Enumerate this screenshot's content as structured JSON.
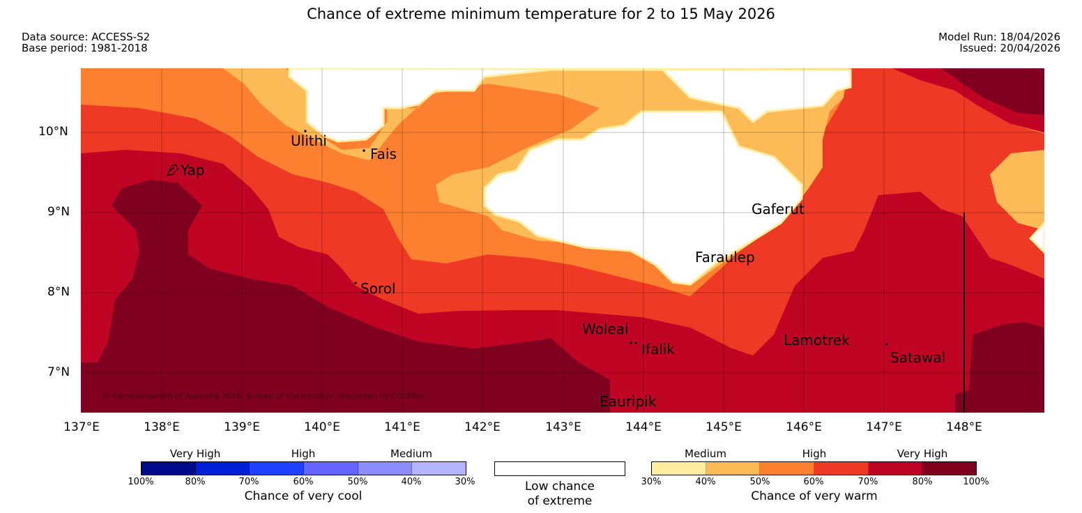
{
  "title": "Chance of extreme minimum temperature for 2 to 15 May 2026",
  "meta": {
    "data_source": "Data source: ACCESS-S2",
    "base_period": "Base period: 1981-2018",
    "model_run": "Model Run: 18/04/2026",
    "issued": "Issued: 20/04/2026"
  },
  "axes": {
    "lat_labels": [
      "10°N",
      "9°N",
      "8°N",
      "7°N"
    ],
    "lon_labels": [
      "137°E",
      "138°E",
      "139°E",
      "140°E",
      "141°E",
      "142°E",
      "143°E",
      "144°E",
      "145°E",
      "146°E",
      "147°E",
      "148°E"
    ]
  },
  "places": [
    "Ulithi",
    "Fais",
    "Yap",
    "Gaferut",
    "Faraulep",
    "Sorol",
    "Woleai",
    "Ifalik",
    "Lamotrek",
    "Satawal",
    "Eauripik"
  ],
  "copyright": "© Commonwealth of Australia 2026, Bureau of Meteorology, supported by COSPPac",
  "legend": {
    "cool": {
      "headers": [
        "Very High",
        "High",
        "Medium"
      ],
      "ticks": [
        "100%",
        "80%",
        "70%",
        "60%",
        "50%",
        "40%",
        "30%"
      ],
      "caption": "Chance of very cool",
      "colors": [
        "#000b8c",
        "#0020d8",
        "#2040ff",
        "#6464ff",
        "#8c8cff",
        "#b4b4ff"
      ]
    },
    "low": {
      "caption_line1": "Low chance",
      "caption_line2": "of extreme"
    },
    "warm": {
      "headers": [
        "Medium",
        "High",
        "Very High"
      ],
      "ticks": [
        "30%",
        "40%",
        "50%",
        "60%",
        "70%",
        "80%",
        "100%"
      ],
      "caption": "Chance of very warm",
      "colors": [
        "#ffeda0",
        "#fdbb58",
        "#fd8030",
        "#ee3a24",
        "#c00424",
        "#800020"
      ]
    }
  }
}
